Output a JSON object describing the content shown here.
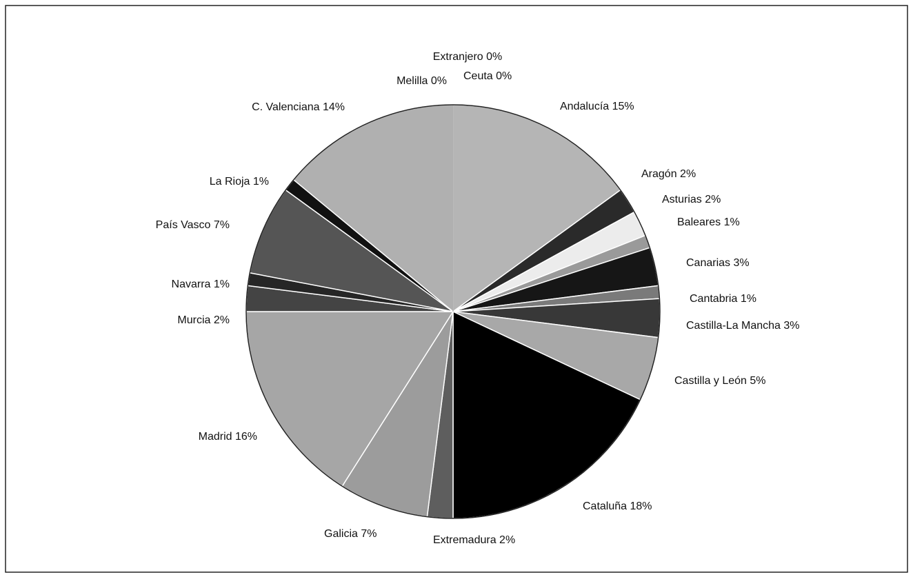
{
  "chart_data": {
    "type": "pie",
    "categories": [
      "Andalucía",
      "Aragón",
      "Asturias",
      "Baleares",
      "Canarias",
      "Cantabria",
      "Castilla-La Mancha",
      "Castilla y León",
      "Cataluña",
      "Extremadura",
      "Galicia",
      "Madrid",
      "Murcia",
      "Navarra",
      "País Vasco",
      "La Rioja",
      "C. Valenciana",
      "Melilla",
      "Ceuta",
      "Extranjero"
    ],
    "values": [
      15,
      2,
      2,
      1,
      3,
      1,
      3,
      5,
      18,
      2,
      7,
      16,
      2,
      1,
      7,
      1,
      14,
      0,
      0,
      0
    ],
    "value_labels": [
      "15%",
      "2%",
      "2%",
      "1%",
      "3%",
      "1%",
      "3%",
      "5%",
      "18%",
      "2%",
      "7%",
      "16%",
      "2%",
      "1%",
      "7%",
      "1%",
      "14%",
      "0%",
      "0%",
      "0%"
    ],
    "colors": [
      "#b5b5b5",
      "#2a2a2a",
      "#ececec",
      "#9a9a9a",
      "#161616",
      "#7a7a7a",
      "#383838",
      "#a8a8a8",
      "#000000",
      "#5e5e5e",
      "#9c9c9c",
      "#a6a6a6",
      "#444444",
      "#262626",
      "#555555",
      "#111111",
      "#b0b0b0",
      "#ffffff",
      "#ffffff",
      "#ffffff"
    ]
  }
}
